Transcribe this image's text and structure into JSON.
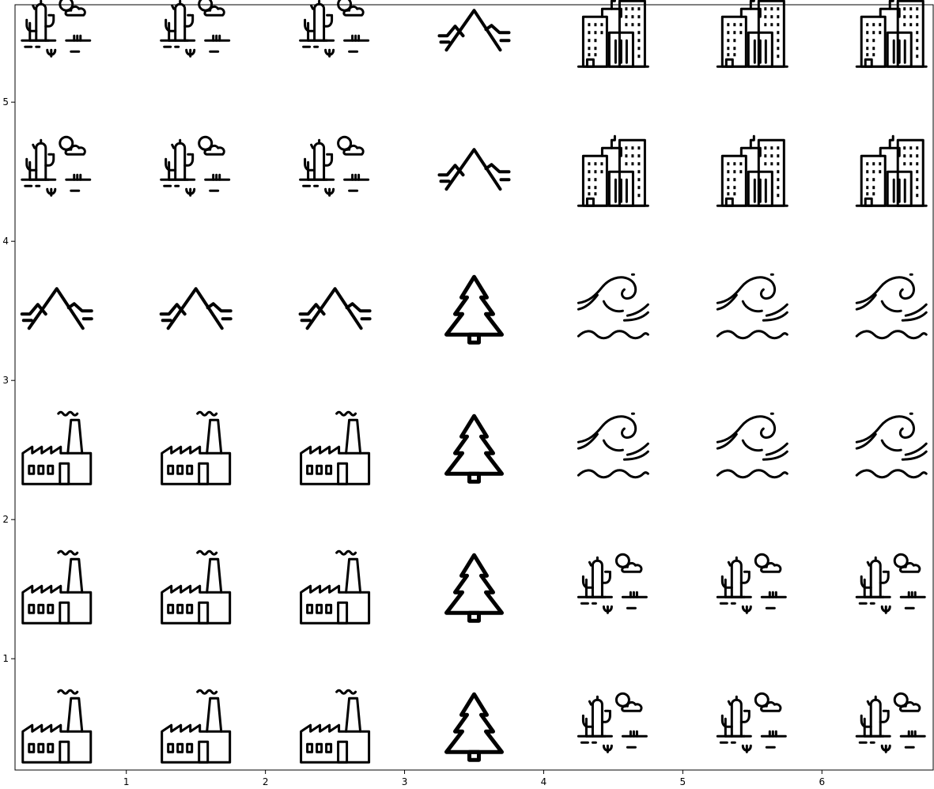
{
  "chart_data": {
    "type": "scatter",
    "title": "",
    "xlabel": "",
    "ylabel": "",
    "xlim": [
      0.2,
      6.8
    ],
    "ylim": [
      0.2,
      5.7
    ],
    "xticks": [
      1,
      2,
      3,
      4,
      5,
      6
    ],
    "yticks": [
      1,
      2,
      3,
      4,
      5
    ],
    "xtick_labels": [
      "1",
      "2",
      "3",
      "4",
      "5",
      "6"
    ],
    "ytick_labels": [
      "1",
      "2",
      "3",
      "4",
      "5"
    ],
    "grid": false,
    "legend": "none",
    "marker_color": "#000000",
    "points": [
      {
        "x": 0.5,
        "y": 0.5,
        "icon": "factory-icon"
      },
      {
        "x": 1.5,
        "y": 0.5,
        "icon": "factory-icon"
      },
      {
        "x": 2.5,
        "y": 0.5,
        "icon": "factory-icon"
      },
      {
        "x": 3.5,
        "y": 0.5,
        "icon": "pine-tree-icon"
      },
      {
        "x": 4.5,
        "y": 0.5,
        "icon": "desert-cactus-icon"
      },
      {
        "x": 5.5,
        "y": 0.5,
        "icon": "desert-cactus-icon"
      },
      {
        "x": 6.5,
        "y": 0.5,
        "icon": "desert-cactus-icon"
      },
      {
        "x": 0.5,
        "y": 1.5,
        "icon": "factory-icon"
      },
      {
        "x": 1.5,
        "y": 1.5,
        "icon": "factory-icon"
      },
      {
        "x": 2.5,
        "y": 1.5,
        "icon": "factory-icon"
      },
      {
        "x": 3.5,
        "y": 1.5,
        "icon": "pine-tree-icon"
      },
      {
        "x": 4.5,
        "y": 1.5,
        "icon": "desert-cactus-icon"
      },
      {
        "x": 5.5,
        "y": 1.5,
        "icon": "desert-cactus-icon"
      },
      {
        "x": 6.5,
        "y": 1.5,
        "icon": "desert-cactus-icon"
      },
      {
        "x": 0.5,
        "y": 2.5,
        "icon": "factory-icon"
      },
      {
        "x": 1.5,
        "y": 2.5,
        "icon": "factory-icon"
      },
      {
        "x": 2.5,
        "y": 2.5,
        "icon": "factory-icon"
      },
      {
        "x": 3.5,
        "y": 2.5,
        "icon": "pine-tree-icon"
      },
      {
        "x": 4.5,
        "y": 2.5,
        "icon": "wind-wave-icon"
      },
      {
        "x": 5.5,
        "y": 2.5,
        "icon": "wind-wave-icon"
      },
      {
        "x": 6.5,
        "y": 2.5,
        "icon": "wind-wave-icon"
      },
      {
        "x": 0.5,
        "y": 3.5,
        "icon": "mountain-icon"
      },
      {
        "x": 1.5,
        "y": 3.5,
        "icon": "mountain-icon"
      },
      {
        "x": 2.5,
        "y": 3.5,
        "icon": "mountain-icon"
      },
      {
        "x": 3.5,
        "y": 3.5,
        "icon": "pine-tree-icon"
      },
      {
        "x": 4.5,
        "y": 3.5,
        "icon": "wind-wave-icon"
      },
      {
        "x": 5.5,
        "y": 3.5,
        "icon": "wind-wave-icon"
      },
      {
        "x": 6.5,
        "y": 3.5,
        "icon": "wind-wave-icon"
      },
      {
        "x": 0.5,
        "y": 4.5,
        "icon": "desert-cactus-icon"
      },
      {
        "x": 1.5,
        "y": 4.5,
        "icon": "desert-cactus-icon"
      },
      {
        "x": 2.5,
        "y": 4.5,
        "icon": "desert-cactus-icon"
      },
      {
        "x": 3.5,
        "y": 4.5,
        "icon": "mountain-icon"
      },
      {
        "x": 4.5,
        "y": 4.5,
        "icon": "city-buildings-icon"
      },
      {
        "x": 5.5,
        "y": 4.5,
        "icon": "city-buildings-icon"
      },
      {
        "x": 6.5,
        "y": 4.5,
        "icon": "city-buildings-icon"
      },
      {
        "x": 0.5,
        "y": 5.5,
        "icon": "desert-cactus-icon"
      },
      {
        "x": 1.5,
        "y": 5.5,
        "icon": "desert-cactus-icon"
      },
      {
        "x": 2.5,
        "y": 5.5,
        "icon": "desert-cactus-icon"
      },
      {
        "x": 3.5,
        "y": 5.5,
        "icon": "mountain-icon"
      },
      {
        "x": 4.5,
        "y": 5.5,
        "icon": "city-buildings-icon"
      },
      {
        "x": 5.5,
        "y": 5.5,
        "icon": "city-buildings-icon"
      },
      {
        "x": 6.5,
        "y": 5.5,
        "icon": "city-buildings-icon"
      }
    ]
  }
}
